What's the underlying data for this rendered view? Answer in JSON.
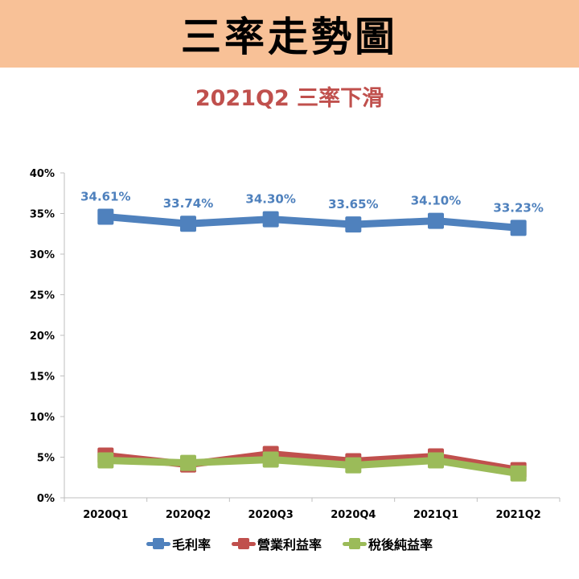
{
  "header": {
    "title": "三率走勢圖",
    "subtitle": "2021Q2 三率下滑"
  },
  "colors": {
    "banner_bg": "#f8c197",
    "subtitle": "#c0504d",
    "gross": "#4f81bd",
    "operating": "#c0504d",
    "net": "#9bbb59"
  },
  "chart_data": {
    "type": "line",
    "categories": [
      "2020Q1",
      "2020Q2",
      "2020Q3",
      "2020Q4",
      "2021Q1",
      "2021Q2"
    ],
    "ylim": [
      0,
      40
    ],
    "yticks": [
      "0%",
      "5%",
      "10%",
      "15%",
      "20%",
      "25%",
      "30%",
      "35%",
      "40%"
    ],
    "grid": false,
    "legend_position": "bottom",
    "series": [
      {
        "name": "毛利率",
        "color": "#4f81bd",
        "values": [
          34.61,
          33.74,
          34.3,
          33.65,
          34.1,
          33.23
        ],
        "labels": [
          "34.61%",
          "33.74%",
          "34.30%",
          "33.65%",
          "34.10%",
          "33.23%"
        ]
      },
      {
        "name": "營業利益率",
        "color": "#c0504d",
        "values": [
          5.2,
          4.1,
          5.4,
          4.5,
          5.1,
          3.4
        ]
      },
      {
        "name": "稅後純益率",
        "color": "#9bbb59",
        "values": [
          4.6,
          4.3,
          4.7,
          4.0,
          4.6,
          3.0
        ]
      }
    ]
  }
}
